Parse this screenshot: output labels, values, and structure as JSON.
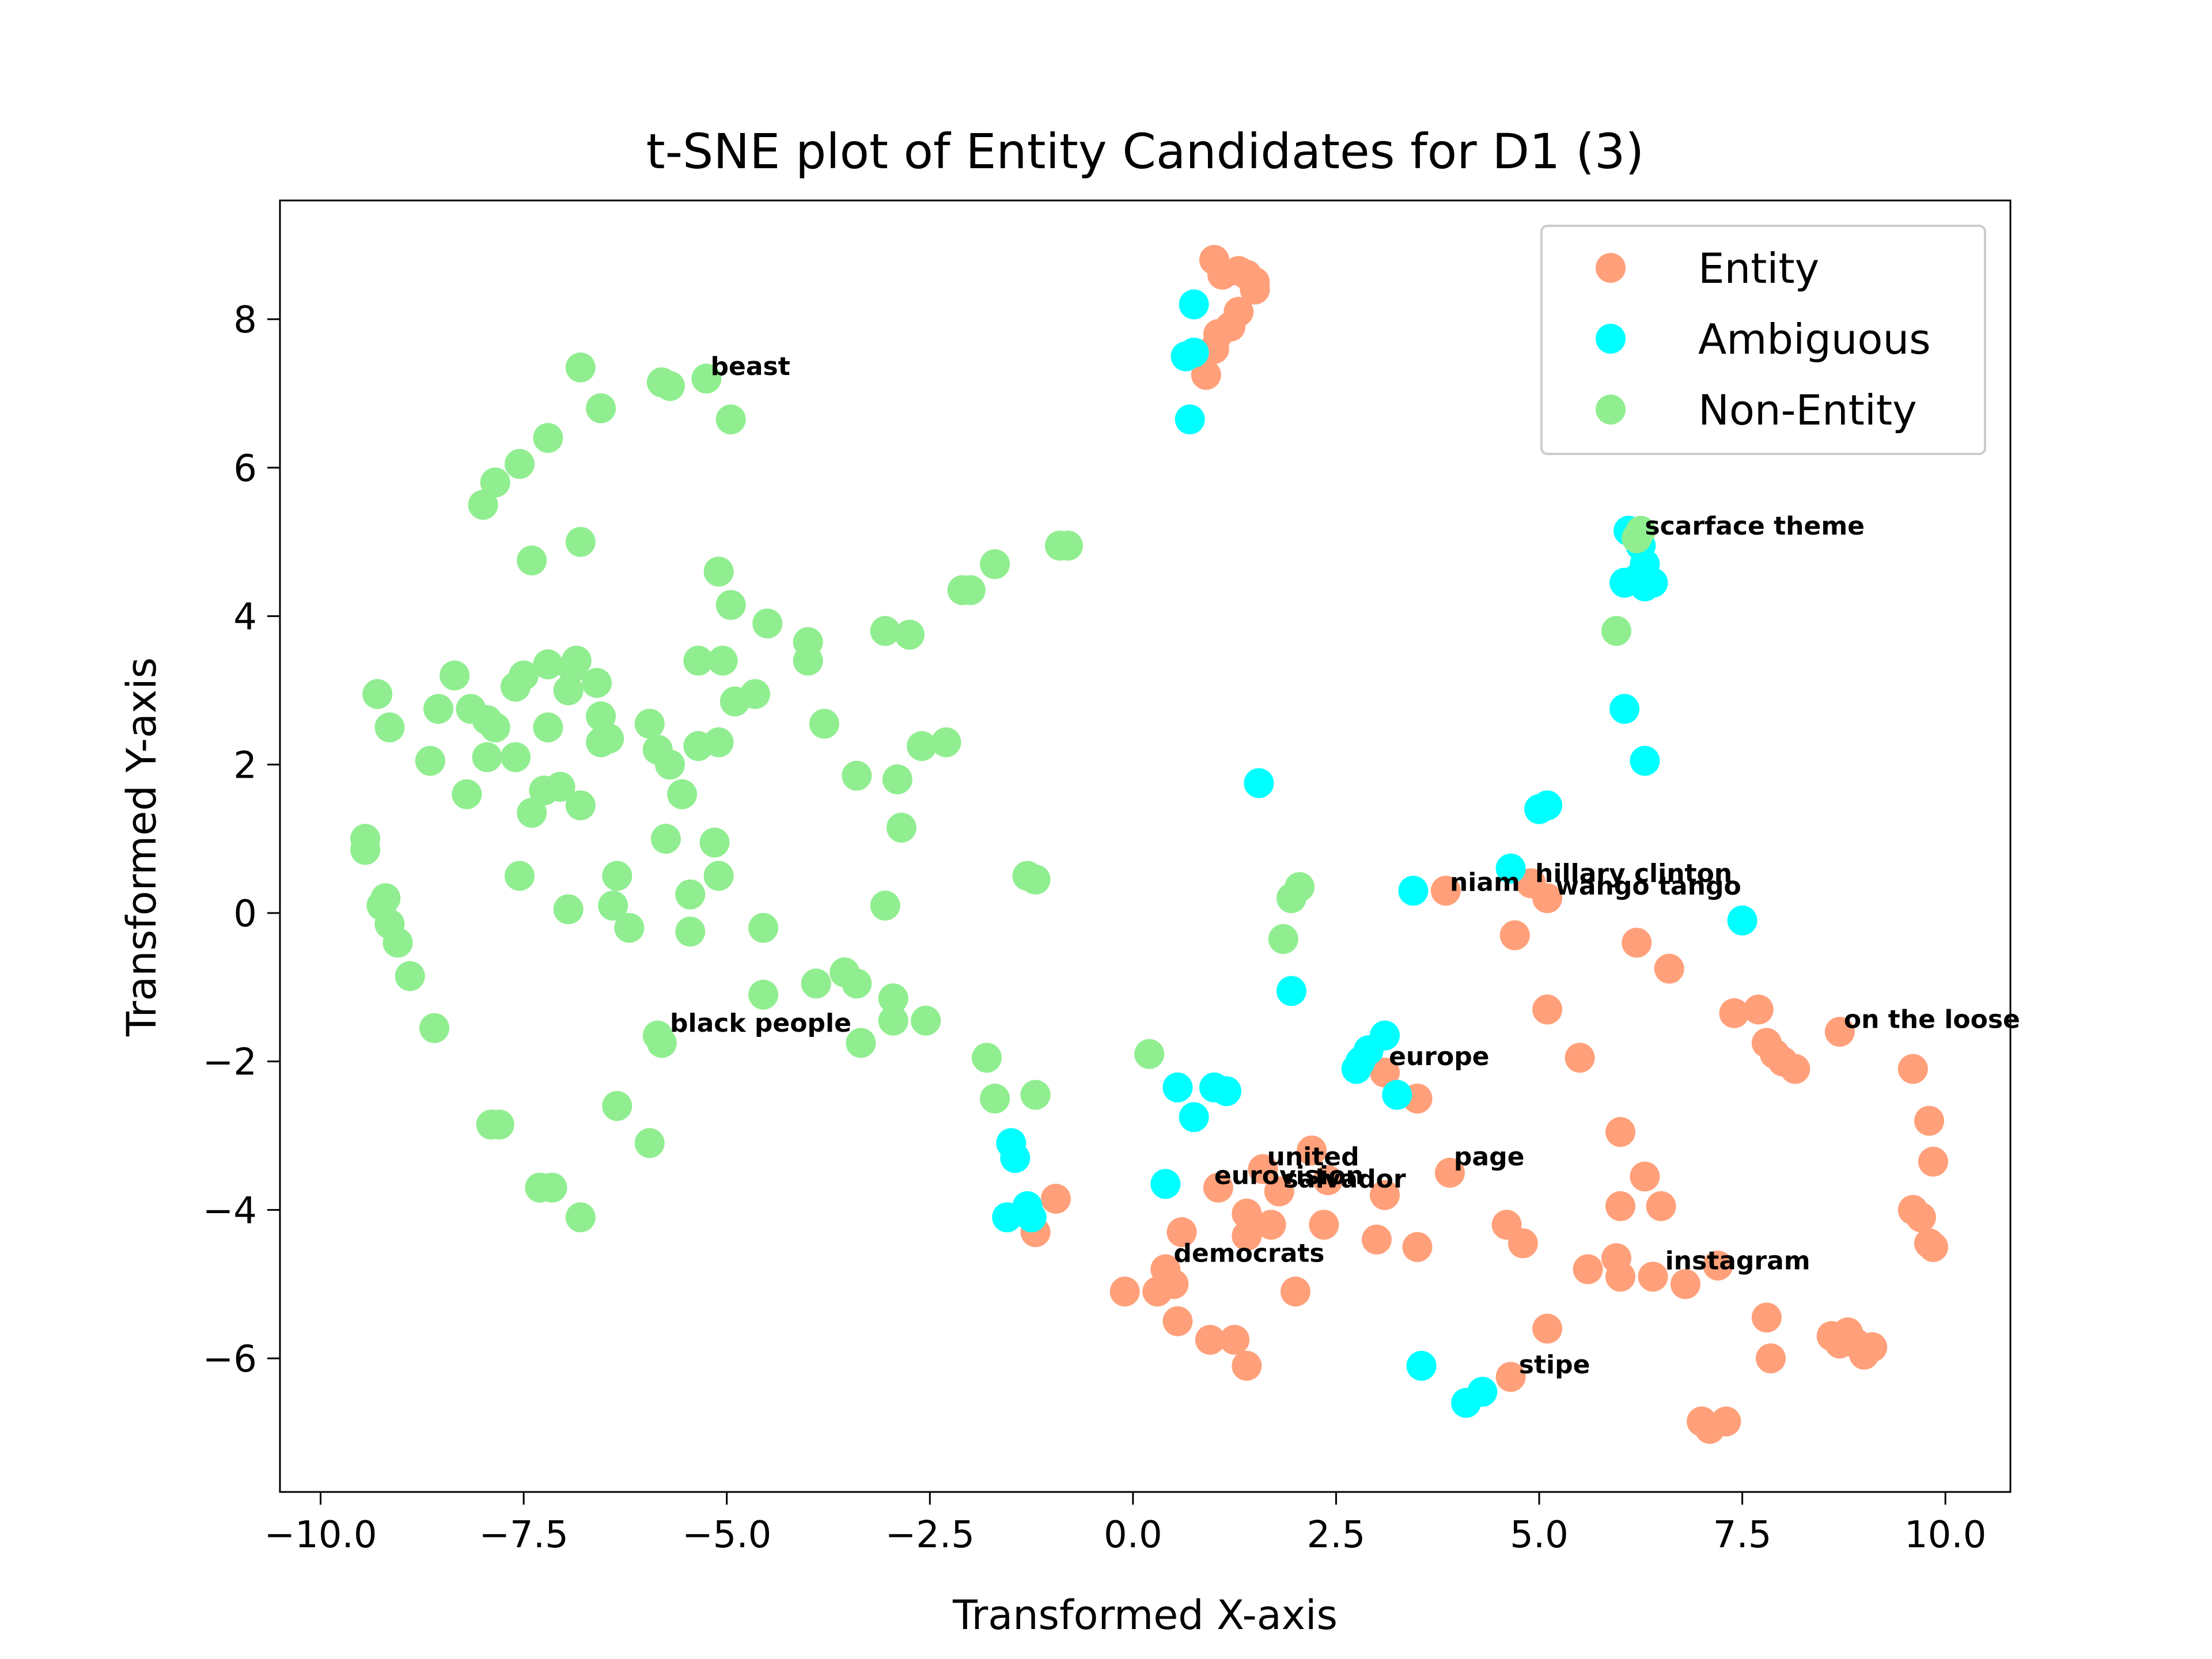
{
  "chart_data": {
    "type": "scatter",
    "title": "t-SNE plot of Entity Candidates for D1 (3)",
    "xlabel": "Transformed X-axis",
    "ylabel": "Transformed Y-axis",
    "xlim": [
      -10.5,
      10.8
    ],
    "ylim": [
      -7.8,
      9.6
    ],
    "xticks": [
      -10.0,
      -7.5,
      -5.0,
      -2.5,
      0.0,
      2.5,
      5.0,
      7.5,
      10.0
    ],
    "xtick_labels": [
      "−10.0",
      "−7.5",
      "−5.0",
      "−2.5",
      "0.0",
      "2.5",
      "5.0",
      "7.5",
      "10.0"
    ],
    "yticks": [
      -6,
      -4,
      -2,
      0,
      2,
      4,
      6,
      8
    ],
    "ytick_labels": [
      "−6",
      "−4",
      "−2",
      "0",
      "2",
      "4",
      "6",
      "8"
    ],
    "grid": false,
    "legend_position": "top-right",
    "series": [
      {
        "name": "Entity",
        "color": "#FFA07A",
        "points": [
          [
            1.0,
            8.8
          ],
          [
            1.1,
            8.6
          ],
          [
            1.3,
            8.65
          ],
          [
            1.4,
            8.6
          ],
          [
            1.5,
            8.5
          ],
          [
            1.5,
            8.4
          ],
          [
            1.3,
            8.1
          ],
          [
            1.2,
            7.9
          ],
          [
            1.05,
            7.8
          ],
          [
            1.0,
            7.6
          ],
          [
            0.9,
            7.25
          ],
          [
            3.85,
            0.3
          ],
          [
            4.9,
            0.4
          ],
          [
            5.1,
            0.2
          ],
          [
            4.7,
            -0.3
          ],
          [
            6.2,
            -0.4
          ],
          [
            6.6,
            -0.75
          ],
          [
            5.1,
            -1.3
          ],
          [
            5.5,
            -1.95
          ],
          [
            7.4,
            -1.35
          ],
          [
            7.7,
            -1.3
          ],
          [
            7.8,
            -1.75
          ],
          [
            7.9,
            -1.9
          ],
          [
            8.0,
            -2.0
          ],
          [
            8.15,
            -2.1
          ],
          [
            8.7,
            -1.6
          ],
          [
            9.6,
            -2.1
          ],
          [
            9.8,
            -2.8
          ],
          [
            9.85,
            -3.35
          ],
          [
            9.6,
            -4.0
          ],
          [
            9.7,
            -4.1
          ],
          [
            9.8,
            -4.45
          ],
          [
            9.85,
            -4.5
          ],
          [
            3.1,
            -2.15
          ],
          [
            3.5,
            -2.5
          ],
          [
            6.0,
            -2.95
          ],
          [
            6.3,
            -3.55
          ],
          [
            6.0,
            -3.95
          ],
          [
            6.5,
            -3.95
          ],
          [
            4.6,
            -4.2
          ],
          [
            4.8,
            -4.45
          ],
          [
            5.6,
            -4.8
          ],
          [
            5.95,
            -4.65
          ],
          [
            6.0,
            -4.9
          ],
          [
            6.4,
            -4.9
          ],
          [
            6.8,
            -5.0
          ],
          [
            7.2,
            -4.75
          ],
          [
            7.8,
            -5.45
          ],
          [
            7.85,
            -6.0
          ],
          [
            8.6,
            -5.7
          ],
          [
            8.7,
            -5.8
          ],
          [
            8.8,
            -5.65
          ],
          [
            8.9,
            -5.8
          ],
          [
            9.0,
            -5.95
          ],
          [
            9.1,
            -5.85
          ],
          [
            7.0,
            -6.85
          ],
          [
            7.1,
            -6.95
          ],
          [
            7.3,
            -6.85
          ],
          [
            4.65,
            -6.25
          ],
          [
            5.1,
            -5.6
          ],
          [
            -0.95,
            -3.85
          ],
          [
            -1.2,
            -4.3
          ],
          [
            1.05,
            -3.7
          ],
          [
            1.6,
            -3.45
          ],
          [
            1.8,
            -3.75
          ],
          [
            2.2,
            -3.2
          ],
          [
            2.4,
            -3.6
          ],
          [
            3.1,
            -3.8
          ],
          [
            3.9,
            -3.5
          ],
          [
            2.35,
            -4.2
          ],
          [
            1.4,
            -4.05
          ],
          [
            1.4,
            -4.35
          ],
          [
            1.7,
            -4.2
          ],
          [
            3.0,
            -4.4
          ],
          [
            3.5,
            -4.5
          ],
          [
            0.6,
            -4.3
          ],
          [
            0.4,
            -4.8
          ],
          [
            0.5,
            -5.0
          ],
          [
            0.3,
            -5.1
          ],
          [
            -0.1,
            -5.1
          ],
          [
            2.0,
            -5.1
          ],
          [
            0.55,
            -5.5
          ],
          [
            0.95,
            -5.75
          ],
          [
            1.25,
            -5.75
          ],
          [
            1.4,
            -6.1
          ]
        ]
      },
      {
        "name": "Ambiguous",
        "color": "#00FFFF",
        "points": [
          [
            0.75,
            8.2
          ],
          [
            0.65,
            7.5
          ],
          [
            0.75,
            7.55
          ],
          [
            0.7,
            6.65
          ],
          [
            6.1,
            5.15
          ],
          [
            6.25,
            4.95
          ],
          [
            6.3,
            4.7
          ],
          [
            6.2,
            4.5
          ],
          [
            6.3,
            4.4
          ],
          [
            6.4,
            4.45
          ],
          [
            6.05,
            4.45
          ],
          [
            6.05,
            2.75
          ],
          [
            6.3,
            2.05
          ],
          [
            5.0,
            1.4
          ],
          [
            5.1,
            1.45
          ],
          [
            4.65,
            0.6
          ],
          [
            3.45,
            0.3
          ],
          [
            7.5,
            -0.1
          ],
          [
            1.55,
            1.75
          ],
          [
            1.95,
            -1.05
          ],
          [
            3.1,
            -1.65
          ],
          [
            2.9,
            -1.85
          ],
          [
            2.8,
            -2.0
          ],
          [
            2.75,
            -2.1
          ],
          [
            3.25,
            -2.45
          ],
          [
            0.55,
            -2.35
          ],
          [
            1.0,
            -2.35
          ],
          [
            1.15,
            -2.4
          ],
          [
            0.75,
            -2.75
          ],
          [
            -1.5,
            -3.1
          ],
          [
            -1.45,
            -3.3
          ],
          [
            -1.55,
            -4.1
          ],
          [
            -1.3,
            -3.95
          ],
          [
            -1.25,
            -4.1
          ],
          [
            0.4,
            -3.65
          ],
          [
            3.55,
            -6.1
          ],
          [
            4.1,
            -6.6
          ],
          [
            4.3,
            -6.45
          ]
        ]
      },
      {
        "name": "Non-Entity",
        "color": "#90EE90",
        "points": [
          [
            -6.8,
            7.35
          ],
          [
            -5.8,
            7.15
          ],
          [
            -5.7,
            7.1
          ],
          [
            -5.25,
            7.2
          ],
          [
            -6.55,
            6.8
          ],
          [
            -4.95,
            6.65
          ],
          [
            -7.2,
            6.4
          ],
          [
            -7.55,
            6.05
          ],
          [
            -7.85,
            5.8
          ],
          [
            -8.0,
            5.5
          ],
          [
            -6.8,
            5.0
          ],
          [
            -7.4,
            4.75
          ],
          [
            -5.1,
            4.6
          ],
          [
            -4.95,
            4.15
          ],
          [
            -4.5,
            3.9
          ],
          [
            -4.0,
            3.65
          ],
          [
            -4.0,
            3.4
          ],
          [
            -3.05,
            3.8
          ],
          [
            -2.75,
            3.75
          ],
          [
            -2.1,
            4.35
          ],
          [
            -2.0,
            4.35
          ],
          [
            -1.7,
            4.7
          ],
          [
            -0.9,
            4.95
          ],
          [
            -0.8,
            4.95
          ],
          [
            -9.3,
            2.95
          ],
          [
            -9.15,
            2.5
          ],
          [
            -8.55,
            2.75
          ],
          [
            -8.35,
            3.2
          ],
          [
            -8.15,
            2.75
          ],
          [
            -7.95,
            2.6
          ],
          [
            -7.85,
            2.5
          ],
          [
            -7.5,
            3.2
          ],
          [
            -7.6,
            3.05
          ],
          [
            -7.2,
            3.35
          ],
          [
            -6.9,
            3.3
          ],
          [
            -6.85,
            3.4
          ],
          [
            -6.95,
            3.0
          ],
          [
            -6.6,
            3.1
          ],
          [
            -7.2,
            2.5
          ],
          [
            -6.55,
            2.65
          ],
          [
            -6.55,
            2.3
          ],
          [
            -6.45,
            2.35
          ],
          [
            -8.65,
            2.05
          ],
          [
            -7.95,
            2.1
          ],
          [
            -7.6,
            2.1
          ],
          [
            -8.2,
            1.6
          ],
          [
            -7.25,
            1.65
          ],
          [
            -7.05,
            1.7
          ],
          [
            -7.4,
            1.35
          ],
          [
            -6.8,
            1.45
          ],
          [
            -5.95,
            2.55
          ],
          [
            -5.85,
            2.2
          ],
          [
            -5.7,
            2.0
          ],
          [
            -5.55,
            1.6
          ],
          [
            -5.35,
            3.4
          ],
          [
            -5.05,
            3.4
          ],
          [
            -5.35,
            2.25
          ],
          [
            -5.1,
            2.3
          ],
          [
            -4.9,
            2.85
          ],
          [
            -4.65,
            2.95
          ],
          [
            -3.8,
            2.55
          ],
          [
            -3.4,
            1.85
          ],
          [
            -2.9,
            1.8
          ],
          [
            -2.85,
            1.15
          ],
          [
            -2.6,
            2.25
          ],
          [
            -2.3,
            2.3
          ],
          [
            -5.75,
            1.0
          ],
          [
            -5.15,
            0.95
          ],
          [
            -5.1,
            0.5
          ],
          [
            -5.45,
            0.25
          ],
          [
            -5.45,
            -0.25
          ],
          [
            -4.55,
            -0.2
          ],
          [
            -6.35,
            0.5
          ],
          [
            -6.4,
            0.1
          ],
          [
            -6.2,
            -0.2
          ],
          [
            -6.95,
            0.05
          ],
          [
            -7.55,
            0.5
          ],
          [
            -3.05,
            0.1
          ],
          [
            -1.3,
            0.5
          ],
          [
            -1.2,
            0.45
          ],
          [
            -9.45,
            1.0
          ],
          [
            -9.45,
            0.85
          ],
          [
            -9.2,
            0.2
          ],
          [
            -9.25,
            0.1
          ],
          [
            -9.15,
            -0.15
          ],
          [
            -9.05,
            -0.4
          ],
          [
            -8.9,
            -0.85
          ],
          [
            -8.6,
            -1.55
          ],
          [
            -5.85,
            -1.65
          ],
          [
            -5.8,
            -1.75
          ],
          [
            -4.55,
            -1.1
          ],
          [
            -3.9,
            -0.95
          ],
          [
            -3.55,
            -0.8
          ],
          [
            -3.4,
            -0.95
          ],
          [
            -2.95,
            -1.15
          ],
          [
            -2.95,
            -1.45
          ],
          [
            -2.55,
            -1.45
          ],
          [
            -3.35,
            -1.75
          ],
          [
            -1.8,
            -1.95
          ],
          [
            -1.7,
            -2.5
          ],
          [
            -1.2,
            -2.45
          ],
          [
            -6.35,
            -2.6
          ],
          [
            -5.95,
            -3.1
          ],
          [
            -7.9,
            -2.85
          ],
          [
            -7.8,
            -2.85
          ],
          [
            -7.3,
            -3.7
          ],
          [
            -7.15,
            -3.7
          ],
          [
            -6.8,
            -4.1
          ],
          [
            0.2,
            -1.9
          ],
          [
            1.85,
            -0.35
          ],
          [
            1.95,
            0.2
          ],
          [
            2.05,
            0.35
          ],
          [
            5.95,
            3.8
          ],
          [
            6.2,
            5.05
          ],
          [
            6.25,
            5.15
          ]
        ]
      }
    ],
    "annotations": [
      {
        "text": "beast",
        "x": -5.2,
        "y": 7.25
      },
      {
        "text": "scarface theme",
        "x": 6.3,
        "y": 5.1
      },
      {
        "text": "niam",
        "x": 3.9,
        "y": 0.3
      },
      {
        "text": "hillary clinton",
        "x": 4.95,
        "y": 0.42
      },
      {
        "text": "wango tango",
        "x": 5.2,
        "y": 0.25
      },
      {
        "text": "on the loose",
        "x": 8.75,
        "y": -1.55
      },
      {
        "text": "black people",
        "x": -5.7,
        "y": -1.6
      },
      {
        "text": "europe",
        "x": 3.15,
        "y": -2.05
      },
      {
        "text": "page",
        "x": 3.95,
        "y": -3.4
      },
      {
        "text": "united",
        "x": 1.65,
        "y": -3.4
      },
      {
        "text": "eurovision",
        "x": 1.0,
        "y": -3.65
      },
      {
        "text": "salvador",
        "x": 1.85,
        "y": -3.7
      },
      {
        "text": "democrats",
        "x": 0.5,
        "y": -4.7
      },
      {
        "text": "instagram",
        "x": 6.55,
        "y": -4.8
      },
      {
        "text": "stipe",
        "x": 4.75,
        "y": -6.2
      }
    ]
  }
}
